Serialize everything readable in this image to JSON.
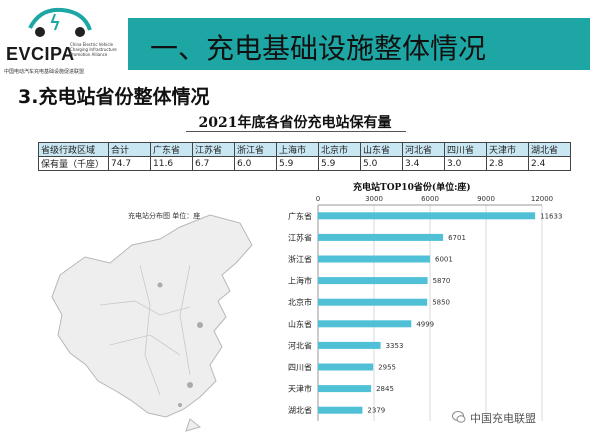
{
  "logo": {
    "name": "EVCIPA",
    "small_text": "China Electric Vehicle Charging Infrastructure Promotion Alliance",
    "org": "中国电动汽车充电基础设施促进联盟"
  },
  "header": {
    "title": "一、充电基础设施整体情况",
    "color": "#1da6a3"
  },
  "subtitle": "3.充电站省份整体情况",
  "table": {
    "title": "2021年底各省份充电站保有量",
    "header": [
      "省级行政区域",
      "合计",
      "广东省",
      "江苏省",
      "浙江省",
      "上海市",
      "北京市",
      "山东省",
      "河北省",
      "四川省",
      "天津市",
      "湖北省"
    ],
    "values": [
      "保有量（千座）",
      "74.7",
      "11.6",
      "6.7",
      "6.0",
      "5.9",
      "5.9",
      "5.0",
      "3.4",
      "3.0",
      "2.8",
      "2.4"
    ]
  },
  "map": {
    "title": "充电站分布图   单位：座"
  },
  "chart_data": {
    "type": "bar",
    "orientation": "horizontal",
    "title": "充电站TOP10省份(单位:座)",
    "categories": [
      "广东省",
      "江苏省",
      "浙江省",
      "上海市",
      "北京市",
      "山东省",
      "河北省",
      "四川省",
      "天津市",
      "湖北省"
    ],
    "values": [
      11633,
      6701,
      6001,
      5870,
      5850,
      4999,
      3353,
      2955,
      2845,
      2379
    ],
    "xlim": [
      0,
      12000
    ],
    "xticks": [
      0,
      3000,
      6000,
      9000,
      12000
    ],
    "bar_color": "#4fc0d6",
    "grid": true,
    "axis_position": "top"
  },
  "watermark": {
    "text": "中国充电联盟"
  }
}
